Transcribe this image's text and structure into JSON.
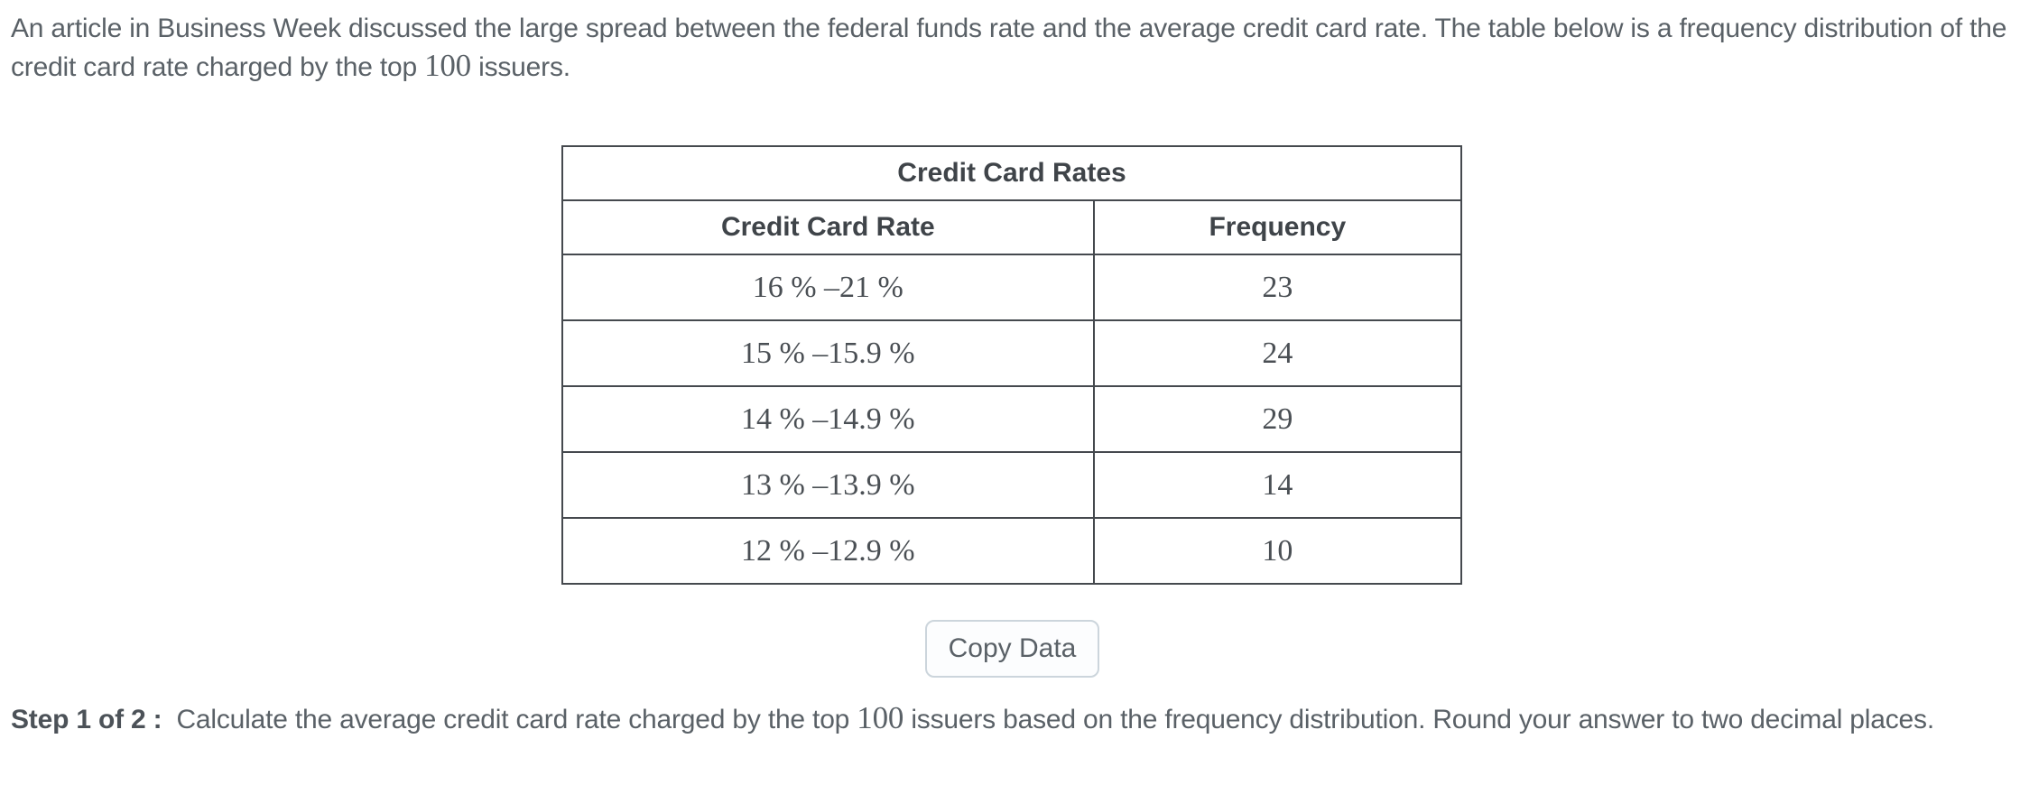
{
  "problem": {
    "intro_line1": "An article in Business Week discussed the large spread between the federal funds rate and the average credit card rate. The table below is a frequency distribution of the",
    "intro_line2_before": "credit card rate charged by the top ",
    "intro_math": "100",
    "intro_line2_after": " issuers."
  },
  "table": {
    "title": "Credit Card Rates",
    "columns": [
      "Credit Card Rate",
      "Frequency"
    ],
    "rows": [
      {
        "rate": "16 % –21 %",
        "frequency": "23"
      },
      {
        "rate": "15 % –15.9 %",
        "frequency": "24"
      },
      {
        "rate": "14 % –14.9 %",
        "frequency": "29"
      },
      {
        "rate": "13 % –13.9 %",
        "frequency": "14"
      },
      {
        "rate": "12 % –12.9 %",
        "frequency": "10"
      }
    ]
  },
  "actions": {
    "copy_data": "Copy Data"
  },
  "step": {
    "label": "Step 1 of 2 :",
    "text_before": "Calculate the average credit card rate charged by the top ",
    "math": "100",
    "text_after": " issuers based on the frequency distribution. Round your answer to two decimal places."
  },
  "colors": {
    "background": "#ffffff",
    "body_text": "#5a6167",
    "heading_text": "#3f4449",
    "table_border": "#45494e",
    "serif_text": "#4a4f54",
    "button_border": "#ccd5dc",
    "button_background": "#fcfdfe"
  }
}
